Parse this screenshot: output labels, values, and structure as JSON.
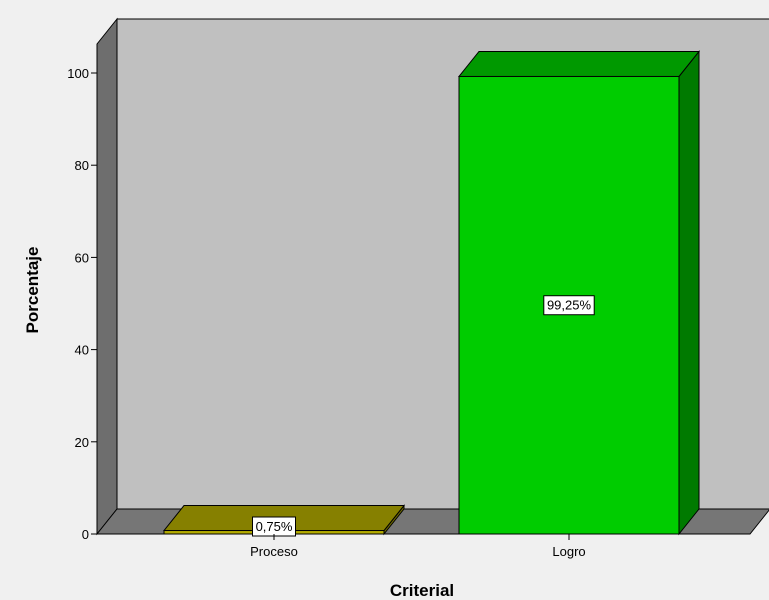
{
  "chart_data": {
    "type": "bar",
    "style": "3d",
    "xlabel": "Criterial",
    "ylabel": "Porcentaje",
    "categories": [
      "Proceso",
      "Logro"
    ],
    "values": [
      0.75,
      99.25
    ],
    "data_labels": [
      "0,75%",
      "99,25%"
    ],
    "bar_colors": [
      "#b3ab00",
      "#00cc00"
    ],
    "ylim": [
      0,
      100
    ],
    "yticks": [
      0,
      20,
      40,
      60,
      80,
      100
    ],
    "grid": false,
    "legend": "none",
    "colors": {
      "background": "#f0f0f0",
      "back_wall": "#c0c0c0",
      "side_wall": "#6e6e6e",
      "floor": "#767676"
    }
  }
}
